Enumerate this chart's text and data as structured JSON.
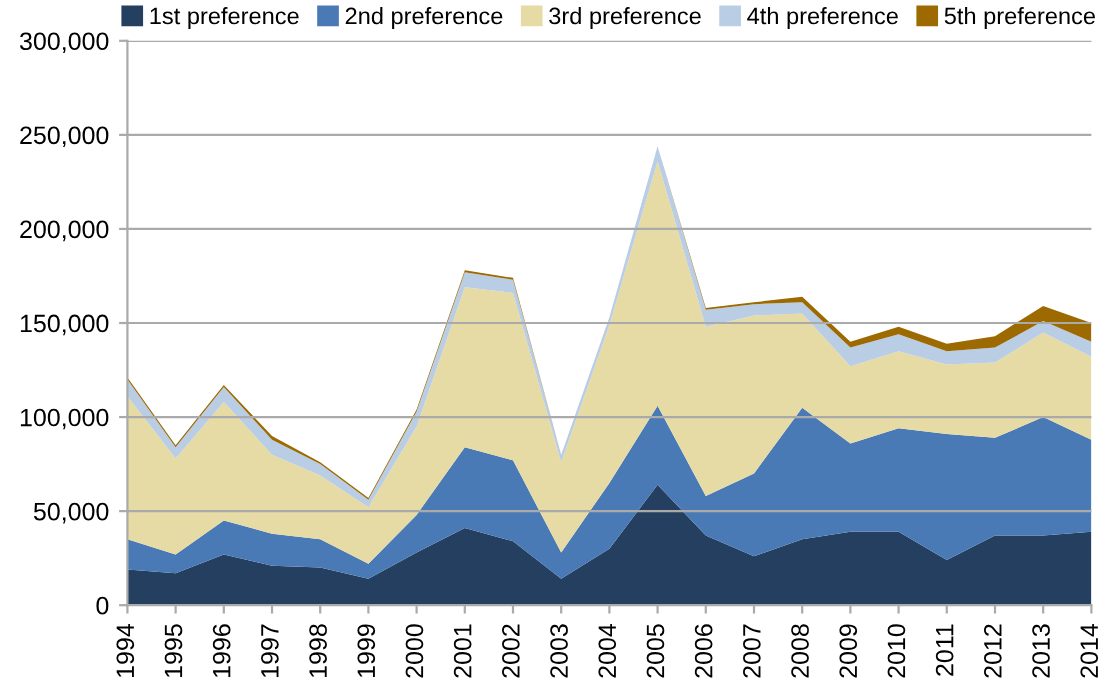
{
  "chart_data": {
    "type": "area",
    "stacked": true,
    "x": [
      1994,
      1995,
      1996,
      1997,
      1998,
      1999,
      2000,
      2001,
      2002,
      2003,
      2004,
      2005,
      2006,
      2007,
      2008,
      2009,
      2010,
      2011,
      2012,
      2013,
      2014
    ],
    "series": [
      {
        "name": "1st preference",
        "color": "#243f60",
        "values": [
          19000,
          17000,
          27000,
          21000,
          20000,
          14000,
          28000,
          41000,
          34000,
          14000,
          30000,
          64000,
          37000,
          26000,
          35000,
          39000,
          39000,
          24000,
          37000,
          37000,
          39000
        ]
      },
      {
        "name": "2nd preference",
        "color": "#4a7ab5",
        "values": [
          16000,
          10000,
          18000,
          17000,
          15000,
          8000,
          20000,
          43000,
          43000,
          14000,
          35000,
          42000,
          21000,
          44000,
          70000,
          47000,
          55000,
          67000,
          52000,
          63000,
          49000
        ]
      },
      {
        "name": "3rd preference",
        "color": "#e6dba5",
        "values": [
          76000,
          51000,
          63000,
          42000,
          34000,
          30000,
          47000,
          85000,
          89000,
          48000,
          84000,
          130000,
          90000,
          84000,
          50000,
          41000,
          41000,
          37000,
          40000,
          45000,
          44000
        ]
      },
      {
        "name": "4th preference",
        "color": "#b9cde5",
        "values": [
          9000,
          6000,
          8000,
          8000,
          6000,
          4000,
          8000,
          8000,
          7000,
          4000,
          4000,
          8000,
          9000,
          6000,
          6000,
          10000,
          9000,
          7000,
          8000,
          6000,
          8000
        ]
      },
      {
        "name": "5th preference",
        "color": "#9c6a00",
        "values": [
          1000,
          1000,
          1000,
          2000,
          1000,
          1000,
          1000,
          1000,
          1000,
          0,
          0,
          0,
          1000,
          1000,
          3000,
          3000,
          4000,
          4000,
          6000,
          8000,
          10000
        ]
      }
    ],
    "xlim": [
      1994,
      2014
    ],
    "xticks": [
      1994,
      1995,
      1996,
      1997,
      1998,
      1999,
      2000,
      2001,
      2002,
      2003,
      2004,
      2005,
      2006,
      2007,
      2008,
      2009,
      2010,
      2011,
      2012,
      2013,
      2014
    ],
    "ylim": [
      0,
      300000
    ],
    "yticks": [
      0,
      {
        "value": 50000,
        "label": "50,000"
      },
      {
        "value": 100000,
        "label": "100,000"
      },
      {
        "value": 150000,
        "label": "150,000"
      },
      {
        "value": 200000,
        "label": "200,000"
      },
      {
        "value": 250000,
        "label": "250,000"
      },
      {
        "value": 300000,
        "label": "300,000"
      }
    ],
    "grid": "y",
    "legend": "top"
  }
}
